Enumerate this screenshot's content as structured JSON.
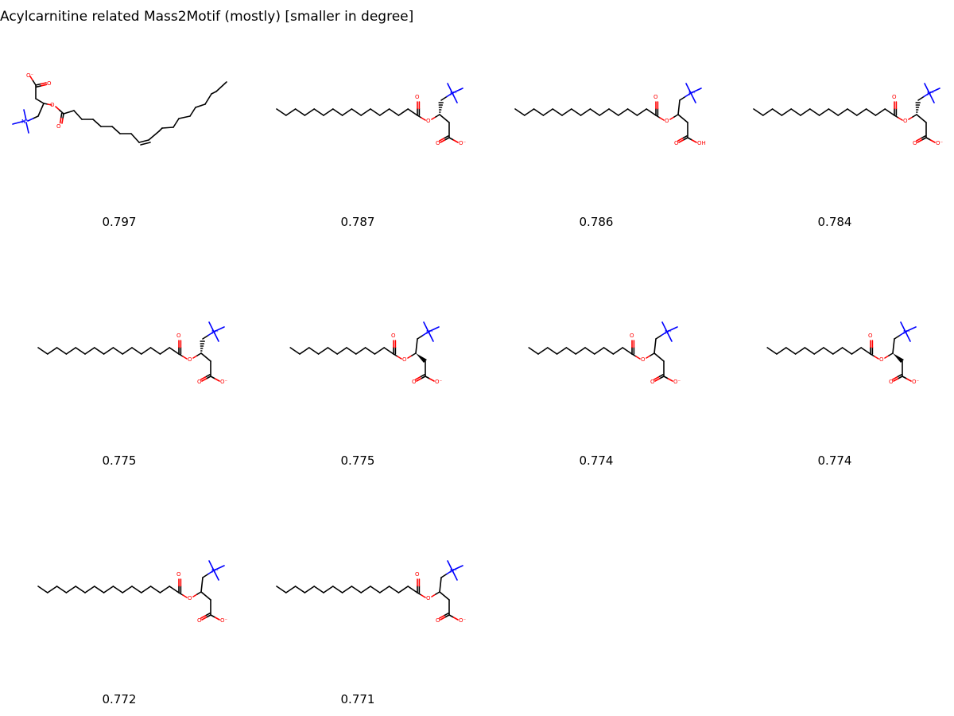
{
  "title": "Acylcarnitine related Mass2Motif (mostly) [smaller in degree]",
  "molecules": [
    {
      "score": "0.797",
      "layout": "bent",
      "acyl_carbons": 18,
      "stereo": "wedge",
      "acid": "anion"
    },
    {
      "score": "0.787",
      "layout": "linear",
      "acyl_carbons": 16,
      "stereo": "hash",
      "acid": "anion"
    },
    {
      "score": "0.786",
      "layout": "linear",
      "acyl_carbons": 16,
      "stereo": "none",
      "acid": "acid"
    },
    {
      "score": "0.784",
      "layout": "linear",
      "acyl_carbons": 16,
      "stereo": "hash",
      "acid": "anion"
    },
    {
      "score": "0.775",
      "layout": "linear",
      "acyl_carbons": 16,
      "stereo": "hash",
      "acid": "anion"
    },
    {
      "score": "0.775",
      "layout": "linear",
      "acyl_carbons": 12,
      "stereo": "wedge",
      "acid": "anion"
    },
    {
      "score": "0.774",
      "layout": "linear",
      "acyl_carbons": 12,
      "stereo": "none",
      "acid": "anion"
    },
    {
      "score": "0.774",
      "layout": "linear",
      "acyl_carbons": 12,
      "stereo": "wedge",
      "acid": "anion"
    },
    {
      "score": "0.772",
      "layout": "linear",
      "acyl_carbons": 16,
      "stereo": "none",
      "acid": "anion"
    },
    {
      "score": "0.771",
      "layout": "linear",
      "acyl_carbons": 16,
      "stereo": "none",
      "acid": "anion"
    }
  ],
  "atom_labels": {
    "oxygen": "O",
    "anion": "O⁻",
    "hydroxyl": "OH",
    "nitrogen": "N⁺"
  },
  "colors": {
    "oxygen": "#ff0000",
    "nitrogen": "#0000ff",
    "bond": "#000000"
  }
}
